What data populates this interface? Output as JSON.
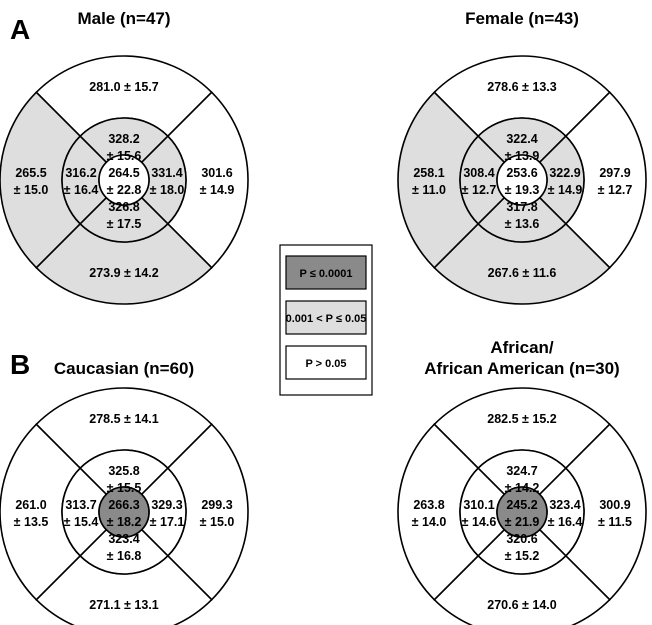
{
  "panel_labels": {
    "a": "A",
    "b": "B"
  },
  "colors": {
    "dark": "#8a8a8a",
    "light": "#dedede",
    "white": "#ffffff",
    "stroke": "#000000"
  },
  "legend": [
    {
      "label": "P ≤ 0.0001",
      "level": "dark"
    },
    {
      "label": "0.001 < P ≤ 0.05",
      "level": "light"
    },
    {
      "label": "P > 0.05",
      "level": "white"
    }
  ],
  "charts": [
    {
      "title": [
        "Male (n=47)"
      ],
      "center": {
        "v": "264.5",
        "sd": "± 22.8",
        "level": "white"
      },
      "inner": {
        "top": {
          "v": "328.2",
          "sd": "± 15.6",
          "level": "light"
        },
        "right": {
          "v": "331.4",
          "sd": "± 18.0",
          "level": "light"
        },
        "bottom": {
          "v": "326.8",
          "sd": "± 17.5",
          "level": "light"
        },
        "left": {
          "v": "316.2",
          "sd": "± 16.4",
          "level": "light"
        }
      },
      "outer": {
        "top": {
          "v": "281.0",
          "sd": "± 15.7",
          "level": "white",
          "layout": "inline"
        },
        "right": {
          "v": "301.6",
          "sd": "± 14.9",
          "level": "white",
          "layout": "stack"
        },
        "bottom": {
          "v": "273.9",
          "sd": "± 14.2",
          "level": "light",
          "layout": "inline"
        },
        "left": {
          "v": "265.5",
          "sd": "± 15.0",
          "level": "light",
          "layout": "stack"
        }
      }
    },
    {
      "title": [
        "Female (n=43)"
      ],
      "center": {
        "v": "253.6",
        "sd": "± 19.3",
        "level": "white"
      },
      "inner": {
        "top": {
          "v": "322.4",
          "sd": "± 13.9",
          "level": "light"
        },
        "right": {
          "v": "322.9",
          "sd": "± 14.9",
          "level": "light"
        },
        "bottom": {
          "v": "317.8",
          "sd": "± 13.6",
          "level": "light"
        },
        "left": {
          "v": "308.4",
          "sd": "± 12.7",
          "level": "light"
        }
      },
      "outer": {
        "top": {
          "v": "278.6",
          "sd": "± 13.3",
          "level": "white",
          "layout": "inline"
        },
        "right": {
          "v": "297.9",
          "sd": "± 12.7",
          "level": "white",
          "layout": "stack"
        },
        "bottom": {
          "v": "267.6",
          "sd": "± 11.6",
          "level": "light",
          "layout": "inline"
        },
        "left": {
          "v": "258.1",
          "sd": "± 11.0",
          "level": "light",
          "layout": "stack"
        }
      }
    },
    {
      "title": [
        "Caucasian (n=60)"
      ],
      "center": {
        "v": "266.3",
        "sd": "± 18.2",
        "level": "dark"
      },
      "inner": {
        "top": {
          "v": "325.8",
          "sd": "± 15.5",
          "level": "white"
        },
        "right": {
          "v": "329.3",
          "sd": "± 17.1",
          "level": "white"
        },
        "bottom": {
          "v": "323.4",
          "sd": "± 16.8",
          "level": "white"
        },
        "left": {
          "v": "313.7",
          "sd": "± 15.4",
          "level": "white"
        }
      },
      "outer": {
        "top": {
          "v": "278.5",
          "sd": "± 14.1",
          "level": "white",
          "layout": "inline"
        },
        "right": {
          "v": "299.3",
          "sd": "± 15.0",
          "level": "white",
          "layout": "stack"
        },
        "bottom": {
          "v": "271.1",
          "sd": "± 13.1",
          "level": "white",
          "layout": "inline"
        },
        "left": {
          "v": "261.0",
          "sd": "± 13.5",
          "level": "white",
          "layout": "stack"
        }
      }
    },
    {
      "title": [
        "African/",
        "African American (n=30)"
      ],
      "center": {
        "v": "245.2",
        "sd": "± 21.9",
        "level": "dark"
      },
      "inner": {
        "top": {
          "v": "324.7",
          "sd": "± 14.2",
          "level": "white"
        },
        "right": {
          "v": "323.4",
          "sd": "± 16.4",
          "level": "white"
        },
        "bottom": {
          "v": "320.6",
          "sd": "± 15.2",
          "level": "white"
        },
        "left": {
          "v": "310.1",
          "sd": "± 14.6",
          "level": "white"
        }
      },
      "outer": {
        "top": {
          "v": "282.5",
          "sd": "± 15.2",
          "level": "white",
          "layout": "inline"
        },
        "right": {
          "v": "300.9",
          "sd": "± 11.5",
          "level": "white",
          "layout": "stack"
        },
        "bottom": {
          "v": "270.6",
          "sd": "± 14.0",
          "level": "white",
          "layout": "inline"
        },
        "left": {
          "v": "263.8",
          "sd": "± 14.0",
          "level": "white",
          "layout": "stack"
        }
      }
    }
  ]
}
